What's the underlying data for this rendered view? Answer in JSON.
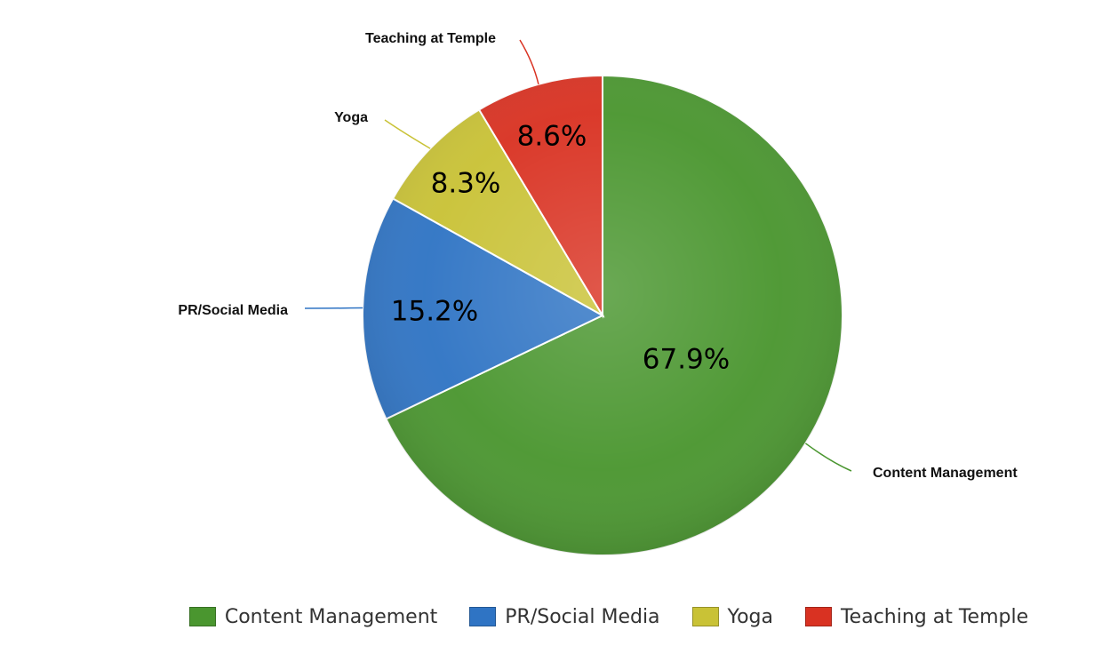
{
  "chart_data": {
    "type": "pie",
    "categories": [
      "Content Management",
      "PR/Social Media",
      "Yoga",
      "Teaching at Temple"
    ],
    "values": [
      67.9,
      15.2,
      8.3,
      8.6
    ],
    "data_labels": [
      "67.9%",
      "15.2%",
      "8.3%",
      "8.6%"
    ],
    "colors": [
      "#4a962f",
      "#2f74c4",
      "#c9c236",
      "#d93222"
    ],
    "start": "12 o'clock",
    "direction": "clockwise",
    "legend_position": "bottom"
  },
  "legend": {
    "items": [
      {
        "label": "Content Management",
        "color": "#4a962f"
      },
      {
        "label": "PR/Social Media",
        "color": "#2f74c4"
      },
      {
        "label": "Yoga",
        "color": "#c9c236"
      },
      {
        "label": "Teaching at Temple",
        "color": "#d93222"
      }
    ]
  }
}
